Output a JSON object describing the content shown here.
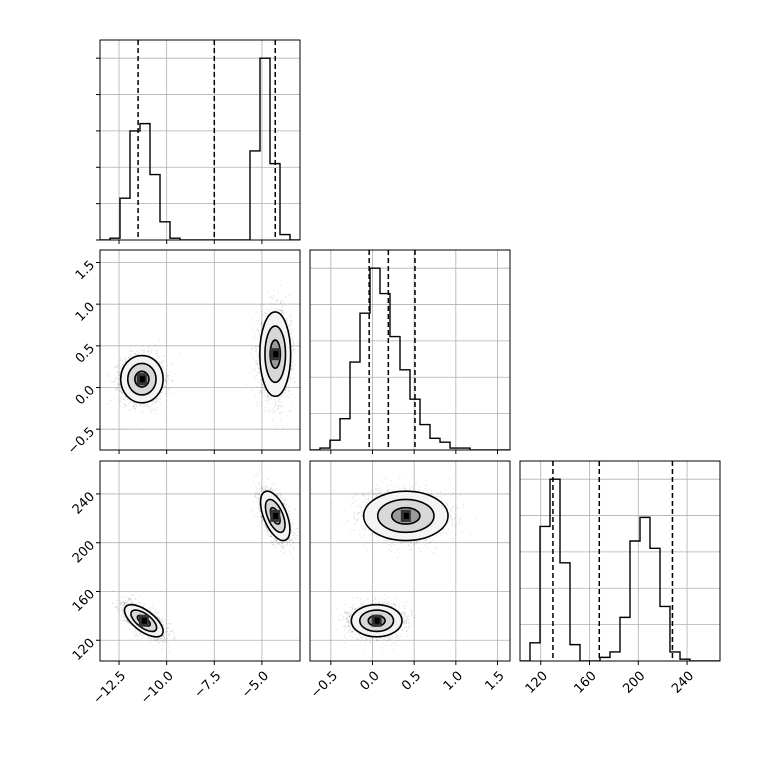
{
  "chart_data": {
    "type": "corner",
    "parameters": [
      "",
      "",
      ""
    ],
    "grid": true,
    "axes": {
      "x0": {
        "range": [
          -13.5,
          -3.0
        ],
        "ticks": [
          -12.5,
          -10.0,
          -7.5,
          -5.0
        ],
        "tick_labels": [
          "−12.5",
          "−10.0",
          "−7.5",
          "−5.0"
        ]
      },
      "x1": {
        "range": [
          -0.75,
          1.65
        ],
        "ticks": [
          -0.5,
          0.0,
          0.5,
          1.0,
          1.5
        ],
        "tick_labels": [
          "−0.5",
          "0.0",
          "0.5",
          "1.0",
          "1.5"
        ]
      },
      "x2": {
        "range": [
          103,
          267
        ],
        "ticks": [
          120,
          160,
          200,
          240
        ],
        "tick_labels": [
          "120",
          "160",
          "200",
          "240"
        ]
      },
      "y1": {
        "range": [
          -0.75,
          1.65
        ],
        "ticks": [
          -0.5,
          0.0,
          0.5,
          1.0,
          1.5
        ],
        "tick_labels": [
          "−0.5",
          "0.0",
          "0.5",
          "1.0",
          "1.5"
        ]
      },
      "y2": {
        "range": [
          103,
          267
        ],
        "ticks": [
          120,
          160,
          200,
          240
        ],
        "tick_labels": [
          "120",
          "160",
          "200",
          "240"
        ]
      }
    },
    "marginals": [
      {
        "param": 0,
        "bins": {
          "start": -13.5,
          "width": 0.525
        },
        "counts": [
          0,
          0.01,
          0.23,
          0.6,
          0.64,
          0.36,
          0.1,
          0.01,
          0,
          0,
          0,
          0,
          0,
          0,
          0,
          0.49,
          1.0,
          0.42,
          0.03,
          0
        ],
        "quantiles": [
          -11.5,
          -7.5,
          -4.3
        ]
      },
      {
        "param": 1,
        "bins": {
          "start": -0.75,
          "width": 0.12
        },
        "counts": [
          0,
          0.01,
          0.05,
          0.16,
          0.45,
          0.7,
          0.93,
          0.8,
          0.58,
          0.41,
          0.26,
          0.13,
          0.06,
          0.04,
          0.01,
          0.01,
          0,
          0,
          0,
          0
        ],
        "quantiles": [
          -0.04,
          0.19,
          0.51
        ]
      },
      {
        "param": 2,
        "bins": {
          "start": 103,
          "width": 8.2
        },
        "counts": [
          0,
          0.1,
          0.74,
          1.0,
          0.54,
          0.09,
          0,
          0,
          0.02,
          0.05,
          0.24,
          0.66,
          0.79,
          0.62,
          0.3,
          0.05,
          0.01,
          0,
          0,
          0
        ],
        "quantiles": [
          130,
          168,
          228
        ]
      }
    ],
    "joints": [
      {
        "x_param": 0,
        "y_param": 1,
        "modes": [
          {
            "cx": -11.3,
            "cy": 0.1,
            "sx": 0.55,
            "sy": 0.14,
            "rho": 0.0
          },
          {
            "cx": -4.3,
            "cy": 0.4,
            "sx": 0.4,
            "sy": 0.25,
            "rho": 0.0
          }
        ]
      },
      {
        "x_param": 0,
        "y_param": 2,
        "modes": [
          {
            "cx": -11.2,
            "cy": 136,
            "sx": 0.5,
            "sy": 6.5,
            "rho": -0.65
          },
          {
            "cx": -4.3,
            "cy": 222,
            "sx": 0.38,
            "sy": 10,
            "rho": -0.55
          }
        ]
      },
      {
        "x_param": 1,
        "y_param": 2,
        "modes": [
          {
            "cx": 0.05,
            "cy": 136,
            "sx": 0.15,
            "sy": 6.5,
            "rho": 0.0
          },
          {
            "cx": 0.4,
            "cy": 222,
            "sx": 0.25,
            "sy": 10,
            "rho": 0.0
          }
        ]
      }
    ],
    "contour_levels_sigma": [
      0.5,
      1.0,
      1.5
    ]
  }
}
